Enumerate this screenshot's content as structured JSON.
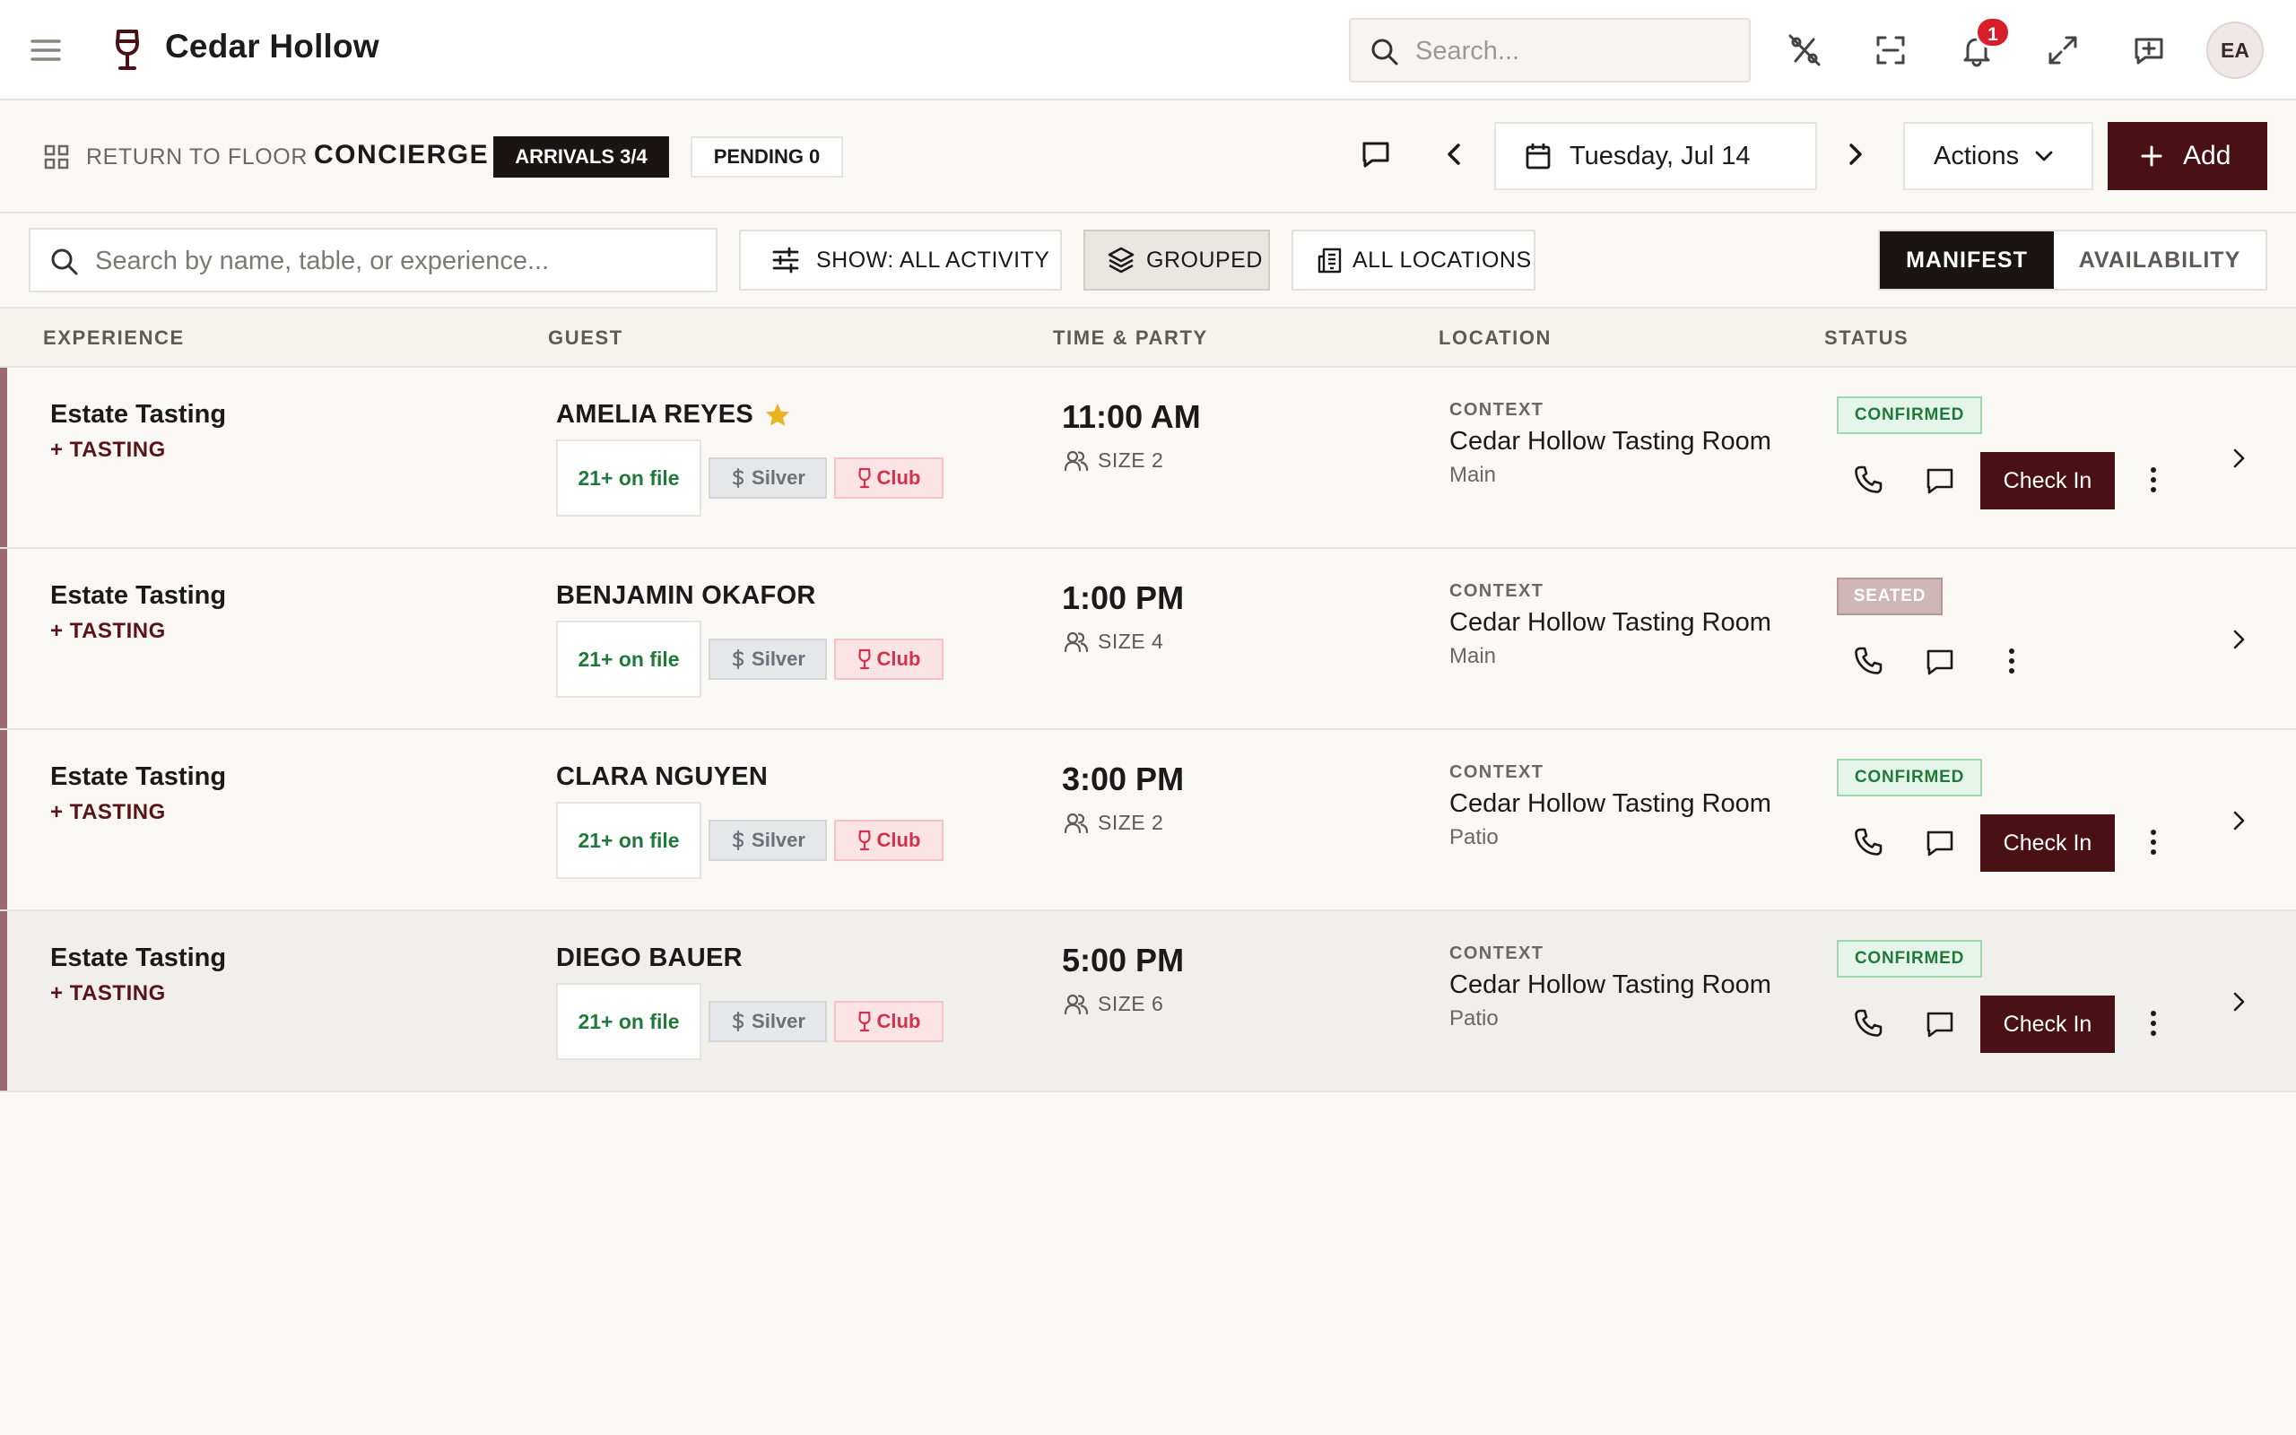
{
  "app": {
    "brand": "Cedar Hollow",
    "search_placeholder": "Search...",
    "notification_count": "1",
    "user_initials": "EA"
  },
  "subbar": {
    "return_label": "RETURN TO FLOOR",
    "section_title": "CONCIERGE",
    "arrivals_label": "ARRIVALS 3/4",
    "pending_label": "PENDING 0",
    "date_label": "Tuesday, Jul 14",
    "actions_label": "Actions",
    "add_label": "Add"
  },
  "filters": {
    "search_placeholder": "Search by name, table, or experience...",
    "show_label": "SHOW: ALL ACTIVITY",
    "grouped_label": "GROUPED",
    "locations_label": "ALL LOCATIONS",
    "view_tabs": [
      "MANIFEST",
      "AVAILABILITY"
    ],
    "active_view": "MANIFEST"
  },
  "table": {
    "columns": [
      "EXPERIENCE",
      "GUEST",
      "TIME & PARTY",
      "LOCATION",
      "STATUS"
    ],
    "rows": [
      {
        "experience": "Estate Tasting",
        "experience_sub": "+ TASTING",
        "guest": "AMELIA REYES",
        "vip_star": true,
        "age_tag": "21+ on file",
        "tier_tag": "Silver",
        "club_tag": "Club",
        "time": "11:00 AM",
        "party": "SIZE 2",
        "location_label": "CONTEXT",
        "location": "Cedar Hollow Tasting Room",
        "area": "Main",
        "status": "CONFIRMED",
        "action": "Check In"
      },
      {
        "experience": "Estate Tasting",
        "experience_sub": "+ TASTING",
        "guest": "BENJAMIN OKAFOR",
        "vip_star": false,
        "age_tag": "21+ on file",
        "tier_tag": "Silver",
        "club_tag": "Club",
        "time": "1:00 PM",
        "party": "SIZE 4",
        "location_label": "CONTEXT",
        "location": "Cedar Hollow Tasting Room",
        "area": "Main",
        "status": "SEATED",
        "action": ""
      },
      {
        "experience": "Estate Tasting",
        "experience_sub": "+ TASTING",
        "guest": "CLARA NGUYEN",
        "vip_star": false,
        "age_tag": "21+ on file",
        "tier_tag": "Silver",
        "club_tag": "Club",
        "time": "3:00 PM",
        "party": "SIZE 2",
        "location_label": "CONTEXT",
        "location": "Cedar Hollow Tasting Room",
        "area": "Patio",
        "status": "CONFIRMED",
        "action": "Check In"
      },
      {
        "experience": "Estate Tasting",
        "experience_sub": "+ TASTING",
        "guest": "DIEGO BAUER",
        "vip_star": false,
        "age_tag": "21+ on file",
        "tier_tag": "Silver",
        "club_tag": "Club",
        "time": "5:00 PM",
        "party": "SIZE 6",
        "location_label": "CONTEXT",
        "location": "Cedar Hollow Tasting Room",
        "area": "Patio",
        "status": "CONFIRMED",
        "action": "Check In"
      }
    ]
  },
  "colors": {
    "brand_primary": "#4a1114",
    "accent_bar": "#9b6a6c",
    "confirmed_green": "#1f7a3a",
    "club_red": "#d2334b",
    "notification_red": "#d71f2b"
  },
  "icons": [
    "menu-icon",
    "wine-glass-icon",
    "search-icon",
    "percent-slash-icon",
    "scan-icon",
    "bell-icon",
    "expand-icon",
    "feedback-icon",
    "grid-icon",
    "message-icon",
    "chevron-left-icon",
    "calendar-icon",
    "chevron-right-icon",
    "chevron-down-icon",
    "plus-icon",
    "sliders-icon",
    "layers-icon",
    "building-icon",
    "star-icon",
    "dollar-icon",
    "party-icon",
    "phone-icon",
    "more-vertical-icon"
  ]
}
